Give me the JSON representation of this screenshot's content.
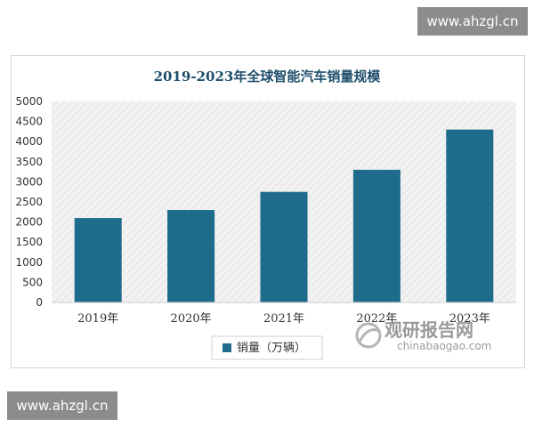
{
  "watermark": {
    "site_top": "www.ahzgl.cn",
    "site_bottom": "www.ahzgl.cn"
  },
  "brand": {
    "name_cn": "观研报告网",
    "name_en": "chinabaogao.com"
  },
  "chart_data": {
    "type": "bar",
    "title": "2019-2023年全球智能汽车销量规模",
    "categories": [
      "2019年",
      "2020年",
      "2021年",
      "2022年",
      "2023年"
    ],
    "series": [
      {
        "name": "销量（万辆）",
        "values": [
          2100,
          2300,
          2750,
          3300,
          4300
        ]
      }
    ],
    "y_ticks": [
      "0",
      "500",
      "1000",
      "1500",
      "2000",
      "2500",
      "3000",
      "3500",
      "4000",
      "4500",
      "5000"
    ],
    "ylim": [
      0,
      5000
    ],
    "grid": false,
    "legend_position": "bottom",
    "colors": {
      "bar": "#1f6b8c",
      "plot_background": "#efefef",
      "title": "#1f4e6b"
    }
  }
}
